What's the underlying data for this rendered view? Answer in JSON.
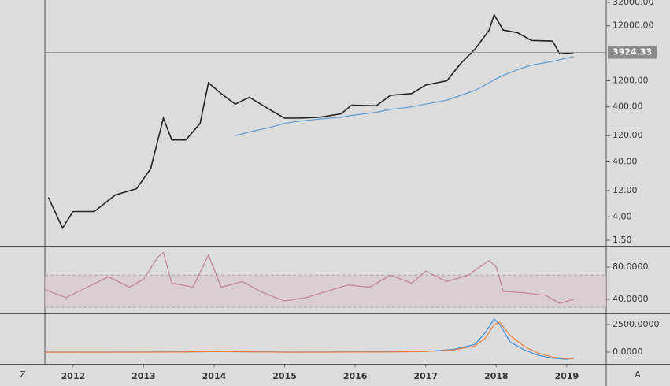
{
  "chart_data": [
    {
      "type": "line",
      "log_scale": true,
      "x": [
        2011.65,
        2011.85,
        2012.0,
        2012.3,
        2012.6,
        2012.9,
        2013.1,
        2013.28,
        2013.4,
        2013.6,
        2013.8,
        2013.92,
        2014.1,
        2014.3,
        2014.5,
        2014.8,
        2015.0,
        2015.2,
        2015.5,
        2015.8,
        2015.95,
        2016.3,
        2016.5,
        2016.8,
        2017.0,
        2017.3,
        2017.5,
        2017.7,
        2017.9,
        2017.97,
        2018.1,
        2018.3,
        2018.5,
        2018.8,
        2018.9,
        2019.1
      ],
      "series": [
        {
          "color": "#222222",
          "values": [
            9,
            2.5,
            5,
            5,
            10,
            13,
            30,
            250,
            100,
            100,
            200,
            1100,
            700,
            450,
            600,
            350,
            250,
            250,
            260,
            300,
            430,
            420,
            650,
            700,
            1000,
            1200,
            2500,
            4500,
            10000,
            19000,
            10000,
            9000,
            6500,
            6300,
            3700,
            3900
          ]
        },
        {
          "color": "#5b9bd5",
          "values": [
            null,
            null,
            null,
            null,
            null,
            null,
            null,
            null,
            null,
            null,
            null,
            null,
            null,
            120,
            140,
            170,
            200,
            220,
            240,
            260,
            280,
            320,
            360,
            400,
            450,
            530,
            650,
            800,
            1100,
            1250,
            1500,
            1900,
            2300,
            2700,
            2900,
            3300
          ]
        }
      ],
      "xlim": [
        2011.6,
        2019.56
      ],
      "xticks": [
        2012,
        2013,
        2014,
        2015,
        2016,
        2017,
        2018,
        2019
      ],
      "ylim": [
        1.19,
        35300
      ],
      "yticks": [
        {
          "value": 1.5,
          "label": "1.50"
        },
        {
          "value": 4,
          "label": "4.00"
        },
        {
          "value": 12,
          "label": "12.00"
        },
        {
          "value": 40,
          "label": "40.00"
        },
        {
          "value": 120,
          "label": "120.00"
        },
        {
          "value": 400,
          "label": "400.00"
        },
        {
          "value": 1200,
          "label": "1200.00"
        },
        {
          "value": 12000,
          "label": "12000.00"
        },
        {
          "value": 32000,
          "label": "32000.00"
        }
      ],
      "last_value": 3924.33
    },
    {
      "type": "line",
      "x": [
        2011.6,
        2011.9,
        2012.2,
        2012.5,
        2012.8,
        2013.0,
        2013.2,
        2013.28,
        2013.4,
        2013.7,
        2013.92,
        2014.1,
        2014.4,
        2014.7,
        2015.0,
        2015.3,
        2015.6,
        2015.9,
        2016.2,
        2016.5,
        2016.8,
        2017.0,
        2017.3,
        2017.6,
        2017.9,
        2018.0,
        2018.1,
        2018.4,
        2018.7,
        2018.9,
        2019.1
      ],
      "series": [
        {
          "color": "#c08090",
          "values": [
            52,
            42,
            55,
            68,
            55,
            65,
            92,
            98,
            60,
            55,
            95,
            55,
            62,
            48,
            38,
            42,
            50,
            58,
            55,
            70,
            60,
            75,
            62,
            70,
            88,
            80,
            50,
            48,
            45,
            35,
            40
          ]
        }
      ],
      "ylim": [
        23.4,
        105.4
      ],
      "yticks": [
        {
          "value": 40,
          "label": "40.0000"
        },
        {
          "value": 80,
          "label": "80.0000"
        }
      ],
      "band": [
        30,
        70
      ]
    },
    {
      "type": "line",
      "x": [
        2011.6,
        2012.5,
        2013.5,
        2014.0,
        2014.5,
        2015.0,
        2016.0,
        2016.5,
        2017.0,
        2017.4,
        2017.7,
        2017.85,
        2017.97,
        2018.05,
        2018.2,
        2018.4,
        2018.6,
        2018.8,
        2019.0,
        2019.1
      ],
      "series": [
        {
          "color": "#3d8ee0",
          "values": [
            0,
            0,
            10,
            60,
            20,
            0,
            10,
            20,
            60,
            250,
            700,
            1800,
            3000,
            2500,
            900,
            200,
            -300,
            -550,
            -650,
            -550
          ]
        },
        {
          "color": "#f07f3c",
          "values": [
            0,
            0,
            8,
            50,
            25,
            2,
            8,
            18,
            50,
            200,
            550,
            1300,
            2500,
            2700,
            1500,
            500,
            -100,
            -450,
            -600,
            -580
          ]
        }
      ],
      "ylim": [
        -1071,
        3500
      ],
      "yticks": [
        {
          "value": 0,
          "label": "0.0000"
        },
        {
          "value": 2500,
          "label": "2500.0000"
        }
      ]
    }
  ],
  "footer": {
    "left": "Z",
    "right": "A"
  }
}
